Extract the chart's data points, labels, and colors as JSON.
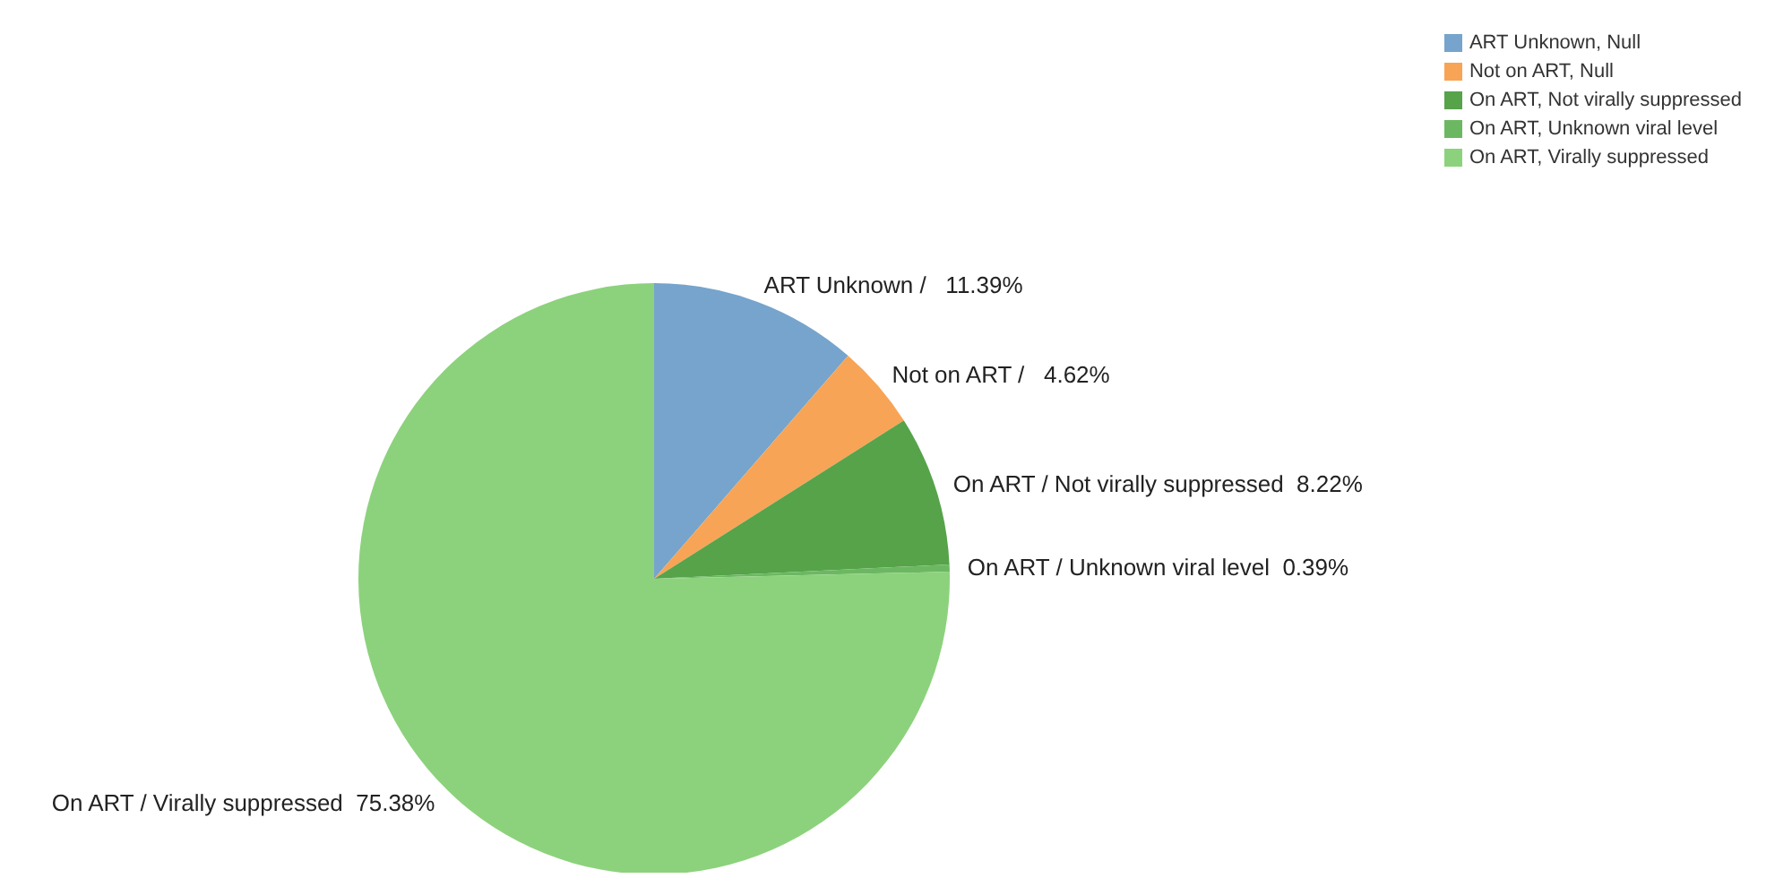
{
  "chart_data": {
    "type": "pie",
    "categories": [
      "ART Unknown, Null",
      "Not on ART, Null",
      "On ART, Not virally suppressed",
      "On ART, Unknown viral level",
      "On ART, Virally suppressed"
    ],
    "values": [
      11.39,
      4.62,
      8.22,
      0.39,
      75.38
    ],
    "colors": [
      "#76a4cc",
      "#f7a456",
      "#56a34a",
      "#6cb862",
      "#8cd27c"
    ],
    "value_labels": [
      "ART Unknown /   11.39%",
      "Not on ART /   4.62%",
      "On ART / Not virally suppressed  8.22%",
      "On ART / Unknown viral level  0.39%",
      "On ART / Virally suppressed  75.38%"
    ],
    "legend": "top right"
  }
}
